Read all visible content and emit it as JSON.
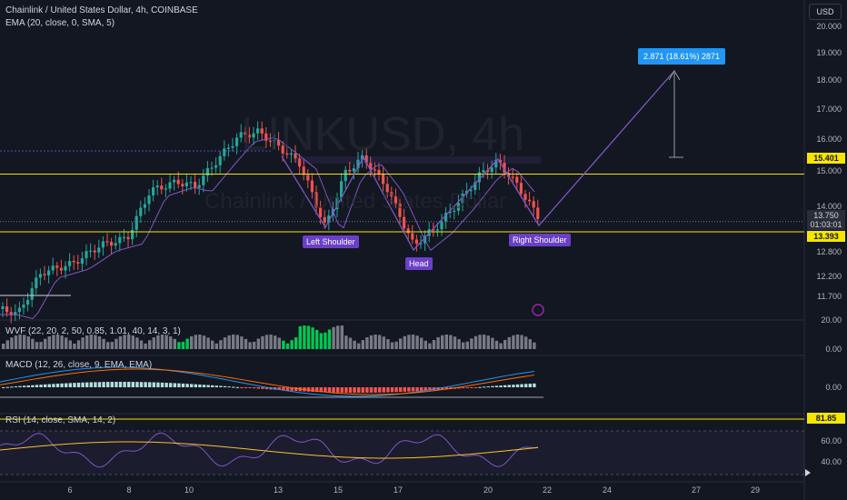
{
  "header": {
    "title": "Chainlink / United States Dollar, 4h, COINBASE",
    "ema": "EMA (20, close, 0, SMA, 5)",
    "currency": "USD"
  },
  "watermark": {
    "symbol": "LINKUSD, 4h",
    "name": "Chainlink / United States Dollar"
  },
  "projection": {
    "label": "2.871 (18.61%) 2871"
  },
  "patterns": {
    "left_shoulder": "Left Shoulder",
    "head": "Head",
    "right_shoulder": "Right Shoulder"
  },
  "price_axis": [
    "20.000",
    "19.000",
    "18.000",
    "17.000",
    "16.000",
    "15.000",
    "14.000",
    "12.800",
    "12.200",
    "11.700"
  ],
  "price_tags": {
    "neckline": "15.401",
    "current": "13.750",
    "countdown": "01:03:01",
    "support": "13.393"
  },
  "wvf": {
    "legend": "WVF (22, 20, 2, 50, 0.85, 1.01, 40, 14, 3, 1)",
    "axis": [
      "20.00",
      "0.00"
    ]
  },
  "macd": {
    "legend": "MACD (12, 26, close, 9, EMA, EMA)",
    "axis": [
      "0.00"
    ]
  },
  "rsi": {
    "legend": "RSI (14, close, SMA, 14, 2)",
    "tag": "81.85",
    "axis": [
      "60.00",
      "40.00"
    ]
  },
  "time_axis": [
    "6",
    "8",
    "10",
    "13",
    "15",
    "17",
    "20",
    "22",
    "24",
    "27",
    "29"
  ],
  "colors": {
    "up": "#26a69a",
    "down": "#ef5350",
    "ema": "#7e57c2",
    "yellow": "#f5e600",
    "blue": "#2196f3",
    "purple": "#6a3fc9"
  }
}
